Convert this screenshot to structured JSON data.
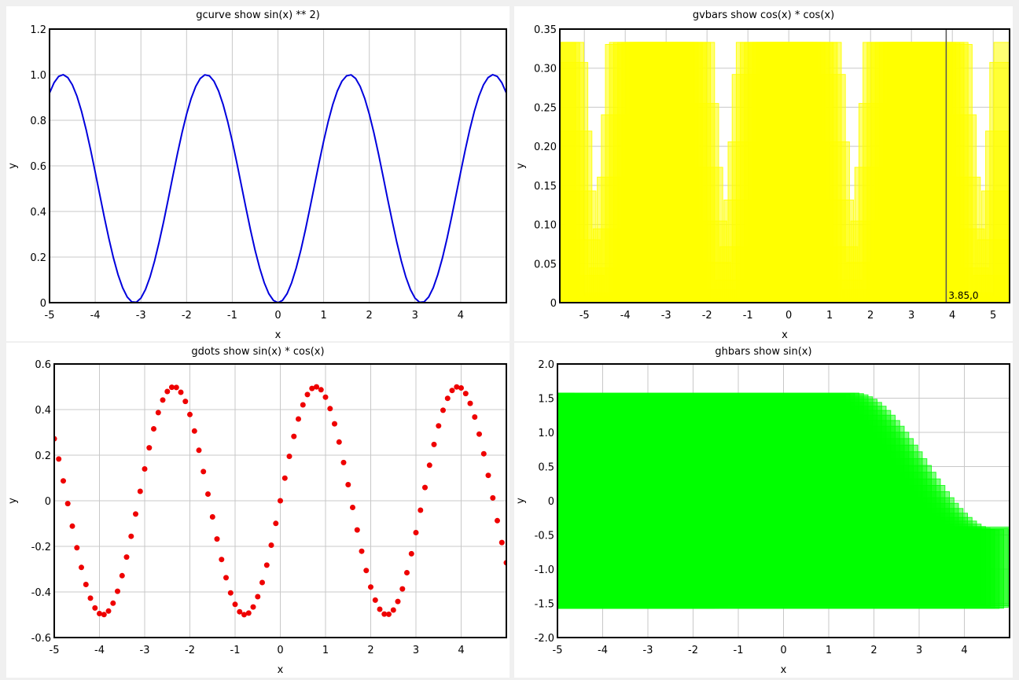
{
  "chart_data": [
    {
      "id": "p1",
      "type": "line",
      "title": "gcurve show sin(x) ** 2)",
      "xlabel": "x",
      "ylabel": "y",
      "xlim": [
        -5,
        5
      ],
      "ylim": [
        0,
        1.2
      ],
      "xticks": [
        "-5",
        "-4",
        "-3",
        "-2",
        "-1",
        "0",
        "1",
        "2",
        "3",
        "4"
      ],
      "yticks": [
        "0",
        "0.2",
        "0.4",
        "0.6",
        "0.8",
        "1.0",
        "1.2"
      ],
      "grid": true,
      "color": "#0000dd",
      "series": [
        {
          "function": "sin(x)**2",
          "x_range": [
            -5,
            5
          ],
          "step": 0.1
        }
      ]
    },
    {
      "id": "p2",
      "type": "bar",
      "orientation": "vertical",
      "title": "gvbars show cos(x) * cos(x)",
      "xlabel": "x",
      "ylabel": "y",
      "xlim": [
        -5.6,
        5.4
      ],
      "ylim": [
        0,
        0.35
      ],
      "xticks": [
        "-5",
        "-4",
        "-3",
        "-2",
        "-1",
        "0",
        "1",
        "2",
        "3",
        "4",
        "5"
      ],
      "yticks": [
        "0",
        "0.05",
        "0.10",
        "0.15",
        "0.20",
        "0.25",
        "0.30",
        "0.35"
      ],
      "grid": true,
      "color": "#ffff00",
      "crosshair": {
        "x": 3.85,
        "label": "3.85,0"
      },
      "series": [
        {
          "function": "cos(x)*cos(x)",
          "x_range": [
            -5.6,
            5.4
          ],
          "step": 0.1,
          "clip_max": 0.333
        }
      ]
    },
    {
      "id": "p3",
      "type": "scatter",
      "title": "gdots show sin(x) * cos(x)",
      "xlabel": "x",
      "ylabel": "y",
      "xlim": [
        -5,
        5
      ],
      "ylim": [
        -0.6,
        0.6
      ],
      "xticks": [
        "-5",
        "-4",
        "-3",
        "-2",
        "-1",
        "0",
        "1",
        "2",
        "3",
        "4"
      ],
      "yticks": [
        "-0.6",
        "-0.4",
        "-0.2",
        "0",
        "0.2",
        "0.4",
        "0.6"
      ],
      "grid": true,
      "color": "#ee0000",
      "series": [
        {
          "function": "sin(x)*cos(x)",
          "x_range": [
            -5,
            5
          ],
          "step": 0.1
        }
      ]
    },
    {
      "id": "p4",
      "type": "bar",
      "orientation": "horizontal",
      "title": "ghbars show sin(x)",
      "xlabel": "x",
      "ylabel": "y",
      "xlim": [
        -5,
        5
      ],
      "ylim": [
        -2.0,
        2.0
      ],
      "xticks": [
        "-5",
        "-4",
        "-3",
        "-2",
        "-1",
        "0",
        "1",
        "2",
        "3",
        "4"
      ],
      "yticks": [
        "-2.0",
        "-1.5",
        "-1.0",
        "-0.5",
        "0",
        "0.5",
        "1.0",
        "1.5",
        "2.0"
      ],
      "grid": true,
      "color": "#00ff00",
      "series": [
        {
          "function": "sin(x)",
          "x_range": [
            -5,
            5
          ],
          "step": 0.1
        }
      ]
    }
  ]
}
